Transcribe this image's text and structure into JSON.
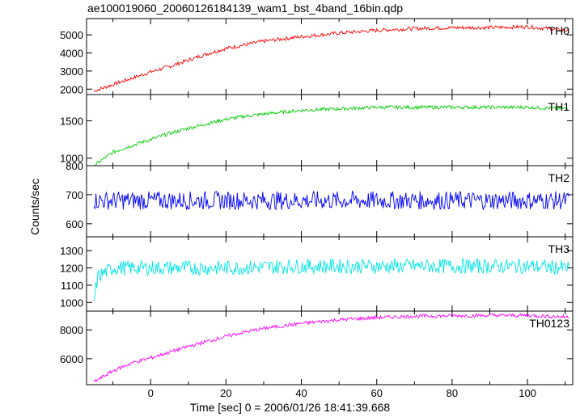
{
  "chart_data": {
    "type": "line",
    "title": "ae100019060_20060126184139_wam1_bst_4band_16bin.qdp",
    "xlabel": "Time [sec] 0 = 2006/01/26 18:41:39.668",
    "ylabel": "Counts/sec",
    "xlim": [
      -17,
      112
    ],
    "x_ticks": [
      0,
      20,
      40,
      60,
      80,
      100
    ],
    "panels": [
      {
        "name": "TH0",
        "color": "#ff0000",
        "ylim": [
          1700,
          5900
        ],
        "y_ticks": [
          2000,
          3000,
          4000,
          5000
        ],
        "x": [
          -15,
          -10,
          -5,
          0,
          5,
          10,
          15,
          20,
          25,
          30,
          40,
          50,
          60,
          70,
          80,
          90,
          100,
          105,
          110
        ],
        "values": [
          1900,
          2250,
          2600,
          2950,
          3250,
          3600,
          3950,
          4250,
          4450,
          4650,
          4900,
          5100,
          5250,
          5350,
          5400,
          5400,
          5450,
          5350,
          5250
        ]
      },
      {
        "name": "TH1",
        "color": "#00cc00",
        "ylim": [
          900,
          1850
        ],
        "y_ticks": [
          1000,
          1500
        ],
        "x": [
          -15,
          -10,
          -5,
          0,
          5,
          10,
          15,
          20,
          25,
          30,
          40,
          50,
          60,
          70,
          80,
          90,
          100,
          110
        ],
        "values": [
          900,
          1080,
          1170,
          1250,
          1330,
          1400,
          1460,
          1520,
          1560,
          1590,
          1640,
          1660,
          1680,
          1680,
          1680,
          1680,
          1680,
          1660
        ]
      },
      {
        "name": "TH2",
        "color": "#0000ff",
        "ylim": [
          555,
          800
        ],
        "y_ticks": [
          600,
          700,
          800
        ],
        "x": [
          -15,
          0,
          20,
          40,
          60,
          80,
          100,
          110
        ],
        "values": [
          680,
          680,
          680,
          680,
          680,
          680,
          680,
          680
        ]
      },
      {
        "name": "TH3",
        "color": "#00e5e5",
        "ylim": [
          950,
          1380
        ],
        "y_ticks": [
          1000,
          1100,
          1200,
          1300
        ],
        "x": [
          -15,
          -14,
          -10,
          0,
          20,
          40,
          60,
          80,
          100,
          110
        ],
        "values": [
          1010,
          1150,
          1200,
          1200,
          1200,
          1210,
          1210,
          1210,
          1210,
          1200
        ]
      },
      {
        "name": "TH0123",
        "color": "#ff00ff",
        "ylim": [
          4200,
          9300
        ],
        "y_ticks": [
          6000,
          8000
        ],
        "x": [
          -15,
          -10,
          -5,
          0,
          5,
          10,
          15,
          20,
          25,
          30,
          40,
          50,
          60,
          70,
          80,
          90,
          100,
          110
        ],
        "values": [
          4400,
          5150,
          5700,
          6050,
          6450,
          6850,
          7200,
          7550,
          7850,
          8100,
          8450,
          8700,
          8850,
          8950,
          8980,
          9000,
          9000,
          8900
        ]
      }
    ]
  }
}
